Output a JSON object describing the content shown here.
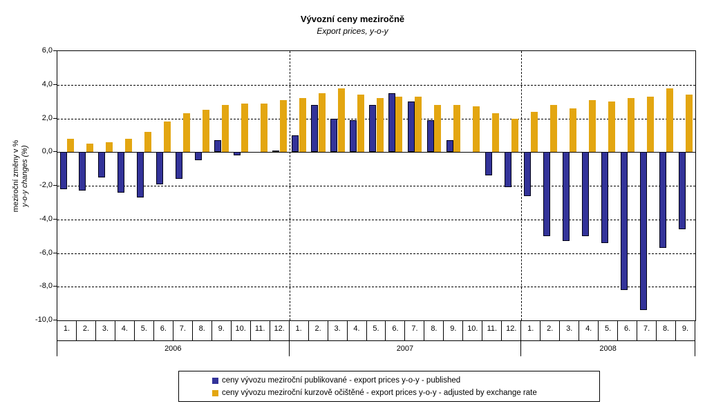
{
  "chart_data": {
    "type": "bar",
    "title": "Vývozní ceny meziročně",
    "subtitle": "Export prices, y-o-y",
    "y_axis": {
      "label_cz": "meziroční změny v %",
      "label_en": "y-o-y changes (%)",
      "min": -10,
      "max": 6,
      "step": 2,
      "tick_labels": [
        "6,0",
        "4,0",
        "2,0",
        "0,0",
        "-2,0",
        "-4,0",
        "-6,0",
        "-8,0",
        "-10,0"
      ],
      "gridlines": "dashed"
    },
    "x_axis": {
      "year_separators": "dashed vertical lines between years"
    },
    "legend_position": "bottom",
    "series_colors": {
      "published": "#333399",
      "adjusted": "#E3A611"
    },
    "groups": [
      {
        "year": "2006",
        "month_labels": [
          "1.",
          "2.",
          "3.",
          "4.",
          "5.",
          "6.",
          "7.",
          "8.",
          "9.",
          "10.",
          "11.",
          "12."
        ],
        "published": [
          -2.2,
          -2.3,
          -1.5,
          -2.4,
          -2.7,
          -1.9,
          -1.6,
          -0.5,
          0.7,
          -0.2,
          0.0,
          0.1
        ],
        "adjusted": [
          0.8,
          0.5,
          0.6,
          0.8,
          1.2,
          1.8,
          2.3,
          2.5,
          2.8,
          2.9,
          2.9,
          3.1
        ]
      },
      {
        "year": "2007",
        "month_labels": [
          "1.",
          "2.",
          "3.",
          "4.",
          "5.",
          "6.",
          "7.",
          "8.",
          "9.",
          "10.",
          "11.",
          "12."
        ],
        "published": [
          1.0,
          2.8,
          2.0,
          1.9,
          2.8,
          3.5,
          3.0,
          1.9,
          0.7,
          0.0,
          -1.4,
          -2.1
        ],
        "adjusted": [
          3.2,
          3.5,
          3.8,
          3.4,
          3.2,
          3.3,
          3.3,
          2.8,
          2.8,
          2.7,
          2.3,
          2.0
        ]
      },
      {
        "year": "2008",
        "month_labels": [
          "1.",
          "2.",
          "3.",
          "4.",
          "5.",
          "6.",
          "7.",
          "8.",
          "9."
        ],
        "published": [
          -2.6,
          -5.0,
          -5.3,
          -5.0,
          -5.4,
          -8.2,
          -9.4,
          -5.7,
          -4.6
        ],
        "adjusted": [
          2.4,
          2.8,
          2.6,
          3.1,
          3.0,
          3.2,
          3.3,
          3.8,
          3.4
        ]
      }
    ],
    "legend": [
      {
        "series": "published",
        "color": "#333399",
        "label": "ceny vývozu meziroční publikované  - export prices y-o-y - published"
      },
      {
        "series": "adjusted",
        "color": "#E3A611",
        "label": "ceny vývozu meziroční kurzově očištěné - export prices y-o-y - adjusted by exchange rate"
      }
    ]
  }
}
